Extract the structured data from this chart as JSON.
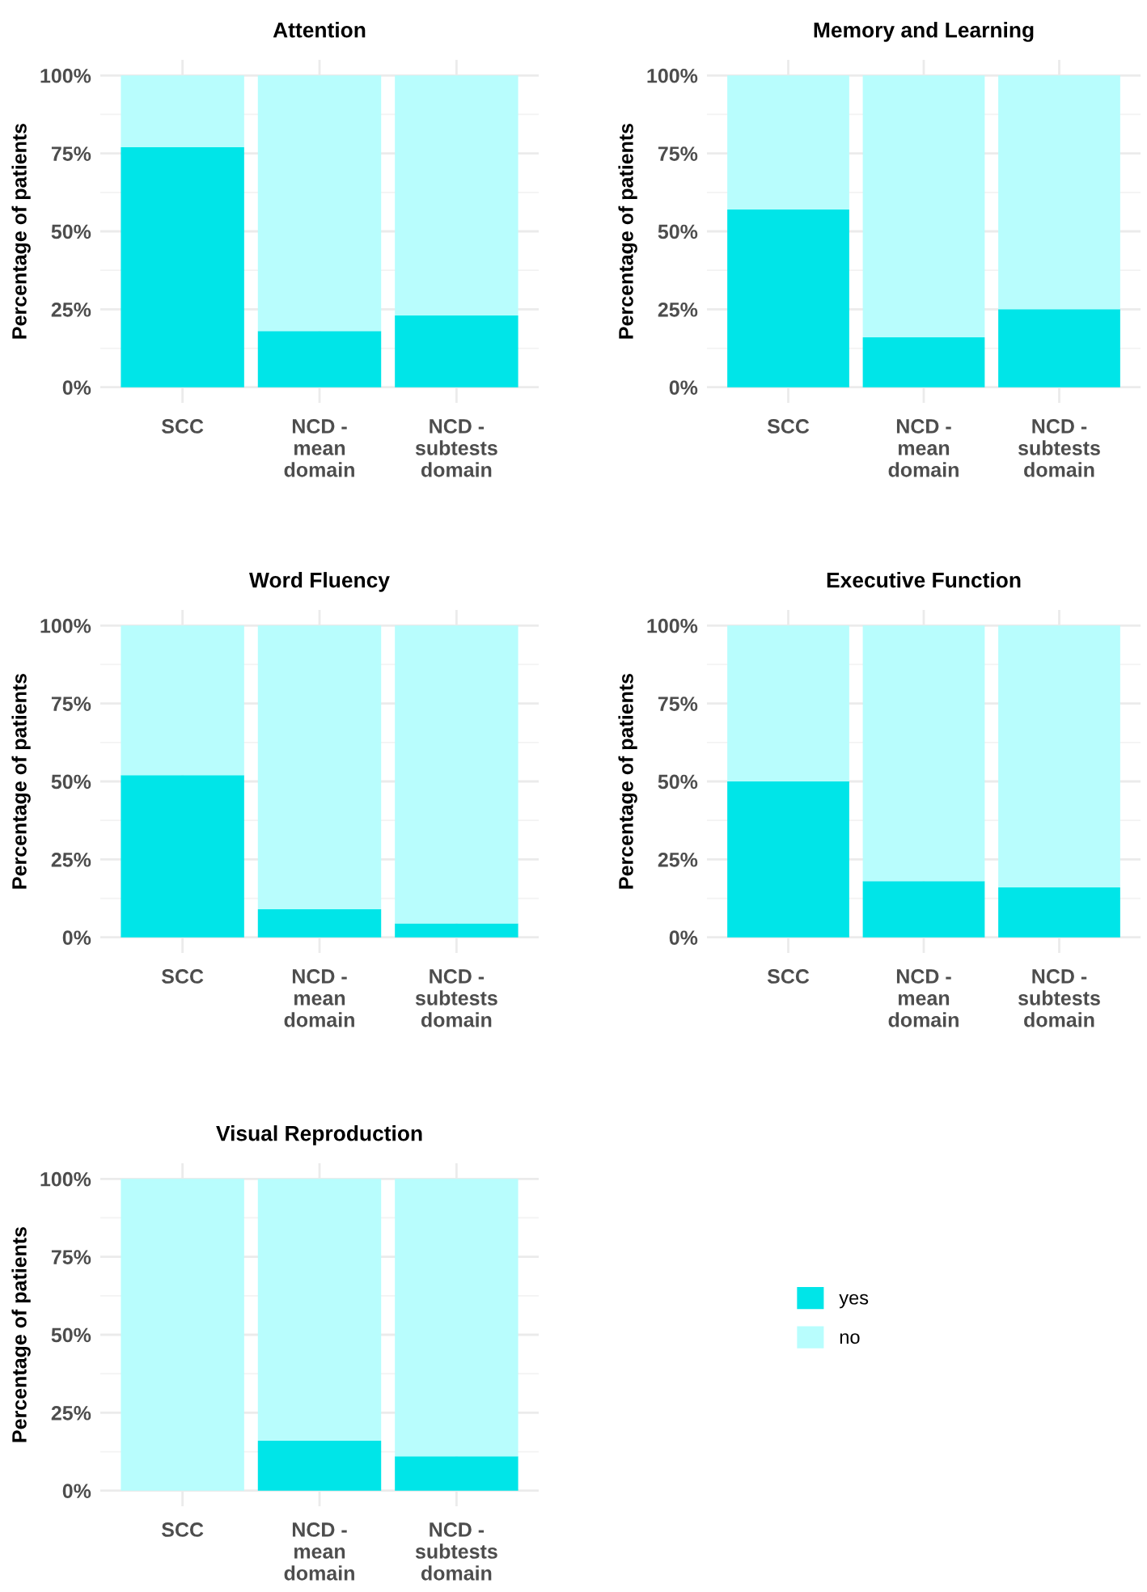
{
  "chart_data": [
    {
      "type": "bar",
      "title": "Attention",
      "ylabel": "Percentage of patients",
      "categories": [
        "SCC",
        "NCD -\nmean\ndomain",
        "NCD -\nsubtests\ndomain"
      ],
      "stacked": true,
      "ylim": [
        -5,
        105
      ],
      "yticks": [
        {
          "value": 0,
          "label": "0%"
        },
        {
          "value": 25,
          "label": "25%"
        },
        {
          "value": 50,
          "label": "50%"
        },
        {
          "value": 75,
          "label": "75%"
        },
        {
          "value": 100,
          "label": "100%"
        }
      ],
      "grid": true,
      "legend": false,
      "series": [
        {
          "color": "#00e5e8",
          "values": [
            77,
            18,
            23
          ]
        },
        {
          "color": "#b8fdfd",
          "values": [
            23,
            82,
            77
          ]
        }
      ]
    },
    {
      "type": "bar",
      "title": "Memory and Learning",
      "ylabel": "Percentage of patients",
      "categories": [
        "SCC",
        "NCD -\nmean\ndomain",
        "NCD -\nsubtests\ndomain"
      ],
      "stacked": true,
      "ylim": [
        -5,
        105
      ],
      "yticks": [
        {
          "value": 0,
          "label": "0%"
        },
        {
          "value": 25,
          "label": "25%"
        },
        {
          "value": 50,
          "label": "50%"
        },
        {
          "value": 75,
          "label": "75%"
        },
        {
          "value": 100,
          "label": "100%"
        }
      ],
      "grid": true,
      "legend": false,
      "series": [
        {
          "color": "#00e5e8",
          "values": [
            57,
            16,
            25
          ]
        },
        {
          "color": "#b8fdfd",
          "values": [
            43,
            84,
            75
          ]
        }
      ]
    },
    {
      "type": "bar",
      "title": "Word Fluency",
      "ylabel": "Percentage of patients",
      "categories": [
        "SCC",
        "NCD -\nmean\ndomain",
        "NCD -\nsubtests\ndomain"
      ],
      "stacked": true,
      "ylim": [
        -5,
        105
      ],
      "yticks": [
        {
          "value": 0,
          "label": "0%"
        },
        {
          "value": 25,
          "label": "25%"
        },
        {
          "value": 50,
          "label": "50%"
        },
        {
          "value": 75,
          "label": "75%"
        },
        {
          "value": 100,
          "label": "100%"
        }
      ],
      "grid": true,
      "legend": false,
      "series": [
        {
          "color": "#00e5e8",
          "values": [
            52,
            9,
            4.5
          ]
        },
        {
          "color": "#b8fdfd",
          "values": [
            48,
            91,
            95.5
          ]
        }
      ]
    },
    {
      "type": "bar",
      "title": "Executive Function",
      "ylabel": "Percentage of patients",
      "categories": [
        "SCC",
        "NCD -\nmean\ndomain",
        "NCD -\nsubtests\ndomain"
      ],
      "stacked": true,
      "ylim": [
        -5,
        105
      ],
      "yticks": [
        {
          "value": 0,
          "label": "0%"
        },
        {
          "value": 25,
          "label": "25%"
        },
        {
          "value": 50,
          "label": "50%"
        },
        {
          "value": 75,
          "label": "75%"
        },
        {
          "value": 100,
          "label": "100%"
        }
      ],
      "grid": true,
      "legend": false,
      "series": [
        {
          "color": "#00e5e8",
          "values": [
            50,
            18,
            16
          ]
        },
        {
          "color": "#b8fdfd",
          "values": [
            50,
            82,
            84
          ]
        }
      ]
    },
    {
      "type": "bar",
      "title": "Visual Reproduction",
      "ylabel": "Percentage of patients",
      "categories": [
        "SCC",
        "NCD -\nmean\ndomain",
        "NCD -\nsubtests\ndomain"
      ],
      "stacked": true,
      "ylim": [
        -5,
        105
      ],
      "yticks": [
        {
          "value": 0,
          "label": "0%"
        },
        {
          "value": 25,
          "label": "25%"
        },
        {
          "value": 50,
          "label": "50%"
        },
        {
          "value": 75,
          "label": "75%"
        },
        {
          "value": 100,
          "label": "100%"
        }
      ],
      "grid": true,
      "legend": "right",
      "series": [
        {
          "name": "yes",
          "color": "#00e5e8",
          "values": [
            0,
            16,
            11
          ]
        },
        {
          "name": "no",
          "color": "#b8fdfd",
          "values": [
            100,
            84,
            89
          ]
        }
      ]
    }
  ]
}
